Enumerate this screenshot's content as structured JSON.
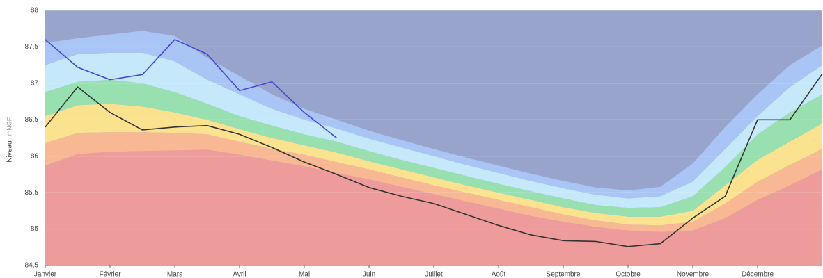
{
  "chart_data": {
    "type": "area",
    "y_label": "Niveau",
    "y_unit": "mNGF",
    "categories": [
      "Janvier",
      null,
      "Février",
      null,
      "Mars",
      null,
      "Avril",
      null,
      "Mai",
      null,
      "Juin",
      null,
      "Juillet",
      null,
      "Août",
      null,
      "Septembre",
      null,
      "Octobre",
      null,
      "Novembre",
      null,
      "Décembre",
      null,
      null
    ],
    "ylim": [
      84.5,
      88
    ],
    "yticks": [
      {
        "value": 84.5,
        "label": "84,5"
      },
      85,
      {
        "value": 85.5,
        "label": "85,5"
      },
      86,
      {
        "value": 86.5,
        "label": "86,5"
      },
      87,
      {
        "value": 87.5,
        "label": "87,5"
      },
      88
    ],
    "grid": true,
    "background": "#98a4cb",
    "series": [
      {
        "color": "#ee9b9b",
        "values": [
          85.87,
          86.03,
          86.06,
          86.07,
          86.08,
          86.09,
          86.02,
          85.94,
          85.86,
          85.77,
          85.68,
          85.58,
          85.48,
          85.38,
          85.28,
          85.18,
          85.1,
          85.03,
          84.98,
          84.96,
          84.98,
          85.15,
          85.4,
          85.6,
          85.82
        ]
      },
      {
        "color": "#f7b893",
        "values": [
          86.18,
          86.32,
          86.33,
          86.33,
          86.32,
          86.3,
          86.2,
          86.1,
          86.02,
          85.92,
          85.82,
          85.71,
          85.6,
          85.5,
          85.4,
          85.3,
          85.2,
          85.12,
          85.06,
          85.05,
          85.1,
          85.35,
          85.65,
          85.88,
          86.1
        ]
      },
      {
        "color": "#fbe28e",
        "values": [
          86.55,
          86.7,
          86.72,
          86.68,
          86.6,
          86.5,
          86.37,
          86.25,
          86.15,
          86.05,
          85.93,
          85.82,
          85.71,
          85.6,
          85.5,
          85.4,
          85.3,
          85.22,
          85.17,
          85.17,
          85.25,
          85.6,
          85.95,
          86.2,
          86.45
        ]
      },
      {
        "color": "#98e0b0",
        "values": [
          86.88,
          87.02,
          87.05,
          87.0,
          86.88,
          86.72,
          86.55,
          86.42,
          86.3,
          86.2,
          86.07,
          85.95,
          85.84,
          85.73,
          85.62,
          85.52,
          85.42,
          85.33,
          85.29,
          85.3,
          85.45,
          85.85,
          86.3,
          86.6,
          86.85
        ]
      },
      {
        "color": "#c6e8fb",
        "values": [
          87.25,
          87.4,
          87.42,
          87.42,
          87.3,
          87.05,
          86.85,
          86.65,
          86.5,
          86.38,
          86.24,
          86.12,
          86.0,
          85.88,
          85.77,
          85.66,
          85.56,
          85.47,
          85.42,
          85.45,
          85.65,
          86.1,
          86.55,
          86.95,
          87.25
        ]
      },
      {
        "color": "#a8c5f6",
        "values": [
          87.55,
          87.62,
          87.67,
          87.72,
          87.65,
          87.35,
          87.1,
          86.85,
          86.65,
          86.5,
          86.35,
          86.22,
          86.1,
          85.98,
          85.87,
          85.76,
          85.66,
          85.57,
          85.53,
          85.58,
          85.9,
          86.4,
          86.85,
          87.25,
          87.52
        ]
      }
    ],
    "lines": [
      {
        "color": "#333333",
        "values": [
          86.4,
          86.95,
          86.6,
          86.36,
          86.4,
          86.42,
          86.3,
          86.12,
          85.92,
          85.75,
          85.57,
          85.45,
          85.35,
          85.2,
          85.05,
          84.92,
          84.84,
          84.83,
          84.76,
          84.8,
          85.15,
          85.45,
          86.5,
          86.5,
          87.13
        ]
      },
      {
        "color": "#4646dc",
        "values": [
          87.6,
          87.22,
          87.05,
          87.12,
          87.6,
          87.4,
          86.9,
          87.02,
          86.6,
          86.25,
          null,
          null,
          null,
          null,
          null,
          null,
          null,
          null,
          null,
          null,
          null,
          null,
          null,
          null,
          null
        ]
      }
    ]
  }
}
